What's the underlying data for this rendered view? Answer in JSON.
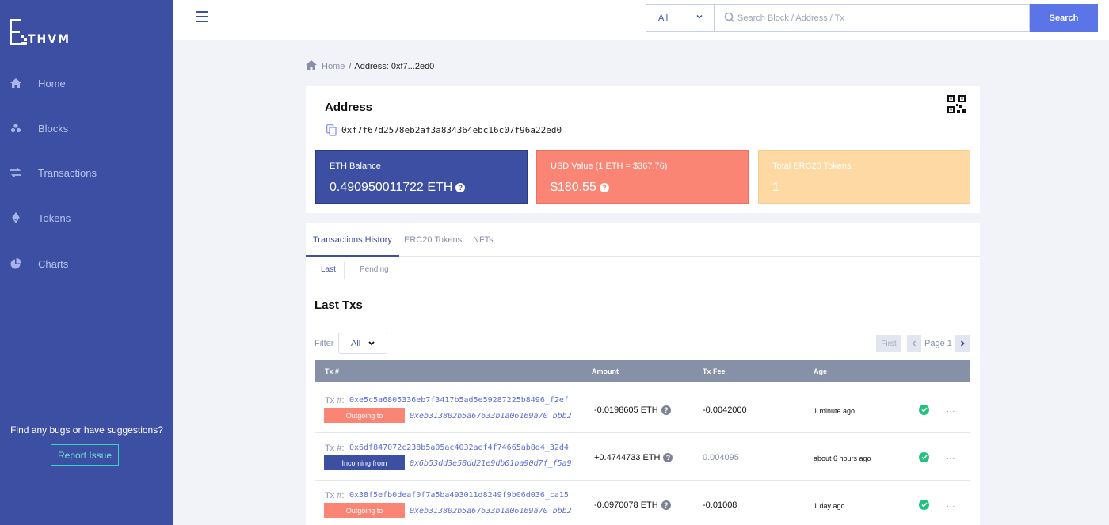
{
  "sidebar": {
    "logo_text": "THVM",
    "items": [
      {
        "label": "Home",
        "icon": "home-icon"
      },
      {
        "label": "Blocks",
        "icon": "blocks-icon"
      },
      {
        "label": "Transactions",
        "icon": "transactions-icon"
      },
      {
        "label": "Tokens",
        "icon": "ethereum-icon"
      },
      {
        "label": "Charts",
        "icon": "pie-chart-icon"
      }
    ],
    "bug_text": "Find any bugs or have suggestions?",
    "report_label": "Report Issue"
  },
  "topbar": {
    "filter_value": "All",
    "search_placeholder": "Search Block / Address / Tx",
    "search_label": "Search"
  },
  "breadcrumb": {
    "home": "Home",
    "separator": "/",
    "current": "Address: 0xf7...2ed0"
  },
  "address": {
    "title": "Address",
    "hash": "0xf7f67d2578eb2af3a834364ebc16c07f96a22ed0",
    "eth_balance_label": "ETH Balance",
    "eth_balance_value": "0.490950011722 ETH",
    "usd_label": "USD Value (1 ETH = $367.76)",
    "usd_value": "$180.55",
    "tokens_label": "Total ERC20 Tokens",
    "tokens_value": "1"
  },
  "tabs": [
    "Transactions History",
    "ERC20 Tokens",
    "NFTs"
  ],
  "subtabs": [
    "Last",
    "Pending"
  ],
  "txs": {
    "title": "Last Txs",
    "filter_label": "Filter",
    "filter_value": "All",
    "pagination": {
      "first": "First",
      "page": "Page 1"
    },
    "columns": [
      "Tx #",
      "Amount",
      "Tx Fee",
      "Age"
    ],
    "tx_label": "Tx #:",
    "rows": [
      {
        "hash": "0xe5c5a6805336eb7f3417b5ad5e59287225b8496_f2ef",
        "direction": "Outgoing to",
        "peer": "0xeb313802b5a67633b1a06169a70_bbb2",
        "amount": "-0.0198605 ETH",
        "fee": "-0.0042000",
        "age": "1 minute ago"
      },
      {
        "hash": "0x6df847072c238b5a05ac4032aef4f74665ab8d4_32d4",
        "direction": "Incoming from",
        "peer": "0x6b53dd3e58dd21e9db01ba90d7f_f5a9",
        "amount": "+0.4744733 ETH",
        "fee": "0.004095",
        "age": "about 6 hours ago"
      },
      {
        "hash": "0x38f5efb0deaf0f7a5ba493011d8249f9b06d036_ca15",
        "direction": "Outgoing to",
        "peer": "0xeb313802b5a67633b1a06169a70_bbb2",
        "amount": "-0.0970078 ETH",
        "fee": "-0.01008",
        "age": "1 day ago"
      }
    ],
    "more": "..."
  },
  "colors": {
    "sidebar": "#3d4fa3",
    "accent": "#5b75e8",
    "outgoing": "#fb8574",
    "incoming": "#3d4fa3",
    "tokens_box": "#fed9a4",
    "success": "#21c17e"
  }
}
